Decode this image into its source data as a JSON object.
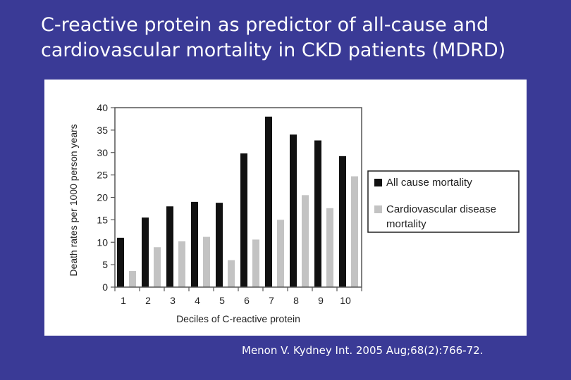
{
  "slide": {
    "title": "C-reactive protein  as predictor of all-cause and cardiovascular mortality in CKD patients (MDRD)",
    "citation": "Menon V.  Kydney Int. 2005 Aug;68(2):766-72."
  },
  "colors": {
    "background": "#3a3a96",
    "all_cause": "#111111",
    "cardiovascular": "#c3c3c3"
  },
  "chart_data": {
    "type": "bar",
    "title": "",
    "xlabel": "Deciles of C-reactive protein",
    "ylabel": "Death rates per 1000 person years",
    "categories": [
      "1",
      "2",
      "3",
      "4",
      "5",
      "6",
      "7",
      "8",
      "9",
      "10"
    ],
    "ylim": [
      0,
      40
    ],
    "yticks": [
      0,
      5,
      10,
      15,
      20,
      25,
      30,
      35,
      40
    ],
    "grid": false,
    "legend_position": "right",
    "series": [
      {
        "name": "All cause mortality",
        "values": [
          11,
          15.5,
          18,
          19,
          18.8,
          29.8,
          38,
          34,
          32.7,
          29.2
        ]
      },
      {
        "name": "Cardiovascular disease mortality",
        "values": [
          3.6,
          8.9,
          10.2,
          11.2,
          6,
          10.6,
          15,
          20.5,
          17.6,
          24.7
        ]
      }
    ],
    "legend_lines": [
      [
        "All cause mortality"
      ],
      [
        "Cardiovascular disease",
        "mortality"
      ]
    ]
  }
}
